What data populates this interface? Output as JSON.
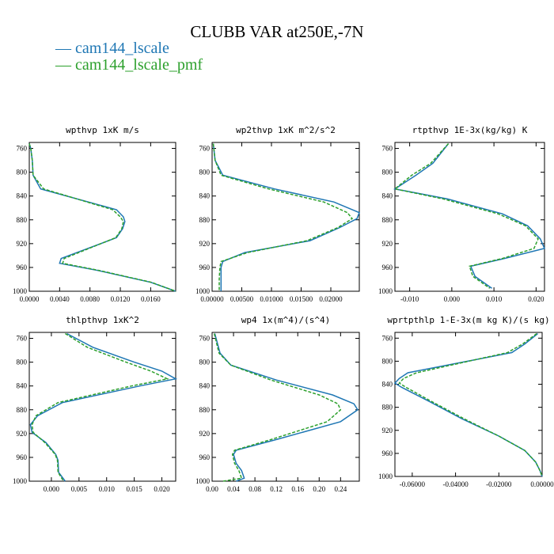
{
  "figure": {
    "title": "CLUBB VAR at250E,-7N",
    "legend": [
      {
        "label": "cam144_lscale",
        "color": "#1f77b4",
        "dash": "solid"
      },
      {
        "label": "cam144_lscale_pmf",
        "color": "#2ca02c",
        "dash": "dashed"
      }
    ]
  },
  "chart_data": [
    {
      "type": "line",
      "title": "wpthvp  1xK m/s",
      "y_ticks": [
        760,
        800,
        840,
        880,
        920,
        960,
        1000
      ],
      "ylim": [
        1000,
        750
      ],
      "x_ticks": [
        0.0,
        0.004,
        0.008,
        0.012,
        0.016
      ],
      "x_tick_labels": [
        "0.0000",
        "0.0040",
        "0.0080",
        "0.0120",
        "0.0160"
      ],
      "xlim": [
        0.0,
        0.0193
      ],
      "y": [
        752,
        760,
        780,
        805,
        828,
        863,
        875,
        883,
        895,
        910,
        945,
        953,
        965,
        985,
        1000
      ],
      "series": [
        {
          "name": "cam144_lscale",
          "values": [
            0.0,
            0.0002,
            0.0004,
            0.0005,
            0.0015,
            0.0115,
            0.0124,
            0.0126,
            0.0123,
            0.0115,
            0.0042,
            0.004,
            0.009,
            0.016,
            0.0193
          ]
        },
        {
          "name": "cam144_lscale_pmf",
          "values": [
            0.0,
            0.0002,
            0.0004,
            0.0005,
            0.0019,
            0.011,
            0.012,
            0.0124,
            0.0122,
            0.0114,
            0.0046,
            0.0044,
            0.0092,
            0.0161,
            0.0193
          ]
        }
      ]
    },
    {
      "type": "line",
      "title": "wp2thvp  1xK m^2/s^2",
      "y_ticks": [
        760,
        800,
        840,
        880,
        920,
        960,
        1000
      ],
      "ylim": [
        1000,
        750
      ],
      "x_ticks": [
        0.0,
        0.005,
        0.01,
        0.015,
        0.02
      ],
      "x_tick_labels": [
        "0.00000",
        "0.00500",
        "0.01000",
        "0.01500",
        "0.02000"
      ],
      "xlim": [
        0.0,
        0.0248
      ],
      "y": [
        752,
        780,
        805,
        828,
        850,
        868,
        878,
        893,
        915,
        935,
        950,
        960,
        980,
        1000
      ],
      "series": [
        {
          "name": "cam144_lscale",
          "values": [
            0.0002,
            0.0005,
            0.0018,
            0.0105,
            0.0205,
            0.0248,
            0.0244,
            0.0215,
            0.0165,
            0.0055,
            0.0018,
            0.0015,
            0.0015,
            0.0015
          ]
        },
        {
          "name": "cam144_lscale_pmf",
          "values": [
            0.0002,
            0.0005,
            0.0015,
            0.0095,
            0.0188,
            0.0228,
            0.0236,
            0.0212,
            0.016,
            0.006,
            0.0015,
            0.0013,
            0.0012,
            0.0012
          ]
        }
      ]
    },
    {
      "type": "line",
      "title": "rtpthvp  1E-3x(kg/kg) K",
      "y_ticks": [
        760,
        800,
        840,
        880,
        920,
        960,
        1000
      ],
      "ylim": [
        1000,
        750
      ],
      "x_ticks": [
        -0.01,
        0.0,
        0.01,
        0.02
      ],
      "x_tick_labels": [
        "-0.010",
        "0.000",
        "0.010",
        "0.020"
      ],
      "xlim": [
        -0.0135,
        0.022
      ],
      "y": [
        752,
        785,
        805,
        828,
        845,
        870,
        890,
        912,
        928,
        945,
        958,
        975,
        995
      ],
      "series": [
        {
          "name": "cam144_lscale",
          "values": [
            -0.0008,
            -0.0045,
            -0.0085,
            -0.0135,
            -0.001,
            0.012,
            0.018,
            0.021,
            0.022,
            0.0125,
            0.0045,
            0.0055,
            0.0095
          ]
        },
        {
          "name": "cam144_lscale_pmf",
          "values": [
            -0.0008,
            -0.005,
            -0.0095,
            -0.0135,
            -0.002,
            0.011,
            0.0175,
            0.0205,
            0.0195,
            0.012,
            0.0042,
            0.005,
            0.009
          ]
        }
      ]
    },
    {
      "type": "line",
      "title": "thlpthvp  1xK^2",
      "y_ticks": [
        760,
        800,
        840,
        880,
        920,
        960,
        1000
      ],
      "ylim": [
        1000,
        750
      ],
      "x_ticks": [
        0.0,
        0.005,
        0.01,
        0.015,
        0.02
      ],
      "x_tick_labels": [
        "0.000",
        "0.005",
        "0.010",
        "0.015",
        "0.020"
      ],
      "xlim": [
        -0.004,
        0.0225
      ],
      "y": [
        752,
        775,
        800,
        815,
        828,
        840,
        868,
        890,
        905,
        918,
        935,
        955,
        965,
        985,
        1000
      ],
      "series": [
        {
          "name": "cam144_lscale",
          "values": [
            0.0028,
            0.0075,
            0.015,
            0.02,
            0.0225,
            0.016,
            0.002,
            -0.0025,
            -0.0038,
            -0.0035,
            -0.001,
            0.0008,
            0.0012,
            0.0013,
            0.0025
          ]
        },
        {
          "name": "cam144_lscale_pmf",
          "values": [
            0.0025,
            0.0065,
            0.0135,
            0.018,
            0.021,
            0.0145,
            0.0012,
            -0.0028,
            -0.0035,
            -0.0033,
            -0.0012,
            0.0007,
            0.0011,
            0.0012,
            0.0022
          ]
        }
      ]
    },
    {
      "type": "line",
      "title": "wp4  1x(m^4)/(s^4)",
      "y_ticks": [
        760,
        800,
        840,
        880,
        920,
        960,
        1000
      ],
      "ylim": [
        1000,
        750
      ],
      "x_ticks": [
        0.0,
        0.04,
        0.08,
        0.12,
        0.16,
        0.2,
        0.24
      ],
      "x_tick_labels": [
        "0.00",
        "0.04",
        "0.08",
        "0.12",
        "0.16",
        "0.20",
        "0.24"
      ],
      "xlim": [
        0.0,
        0.275
      ],
      "y": [
        752,
        785,
        805,
        830,
        855,
        870,
        880,
        900,
        930,
        948,
        955,
        970,
        982,
        995,
        1000
      ],
      "series": [
        {
          "name": "cam144_lscale",
          "values": [
            0.005,
            0.015,
            0.035,
            0.12,
            0.225,
            0.265,
            0.272,
            0.24,
            0.12,
            0.045,
            0.04,
            0.045,
            0.055,
            0.06,
            0.045
          ]
        },
        {
          "name": "cam144_lscale_pmf",
          "values": [
            0.004,
            0.013,
            0.035,
            0.11,
            0.2,
            0.235,
            0.24,
            0.215,
            0.11,
            0.042,
            0.038,
            0.042,
            0.05,
            0.055,
            0.02
          ]
        }
      ]
    },
    {
      "type": "line",
      "title": "wprtpthlp  1-E-3x(m kg K)/(s kg)",
      "y_ticks": [
        760,
        800,
        840,
        880,
        920,
        960,
        1000
      ],
      "ylim": [
        1000,
        750
      ],
      "x_ticks": [
        -0.06,
        -0.04,
        -0.02,
        0.0
      ],
      "x_tick_labels": [
        "-0.06000",
        "-0.04000",
        "-0.02000",
        "0.00000"
      ],
      "xlim": [
        -0.068,
        0.0
      ],
      "y": [
        752,
        770,
        785,
        820,
        830,
        838,
        845,
        870,
        900,
        930,
        955,
        975,
        990,
        1000
      ],
      "series": [
        {
          "name": "cam144_lscale",
          "values": [
            -0.002,
            -0.008,
            -0.014,
            -0.062,
            -0.066,
            -0.068,
            -0.065,
            -0.052,
            -0.037,
            -0.02,
            -0.008,
            -0.003,
            -0.001,
            0.0
          ]
        },
        {
          "name": "cam144_lscale_pmf",
          "values": [
            -0.0025,
            -0.009,
            -0.016,
            -0.058,
            -0.064,
            -0.066,
            -0.063,
            -0.051,
            -0.036,
            -0.02,
            -0.008,
            -0.003,
            -0.001,
            0.0
          ]
        }
      ]
    }
  ]
}
